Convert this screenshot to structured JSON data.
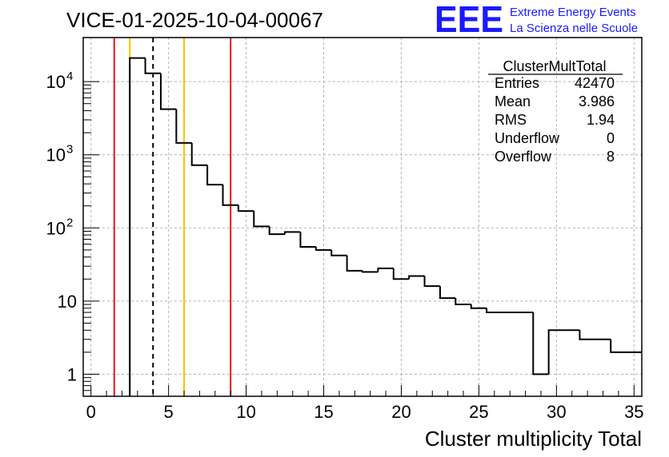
{
  "chart_data": {
    "type": "histogram",
    "title": "VICE-01-2025-10-04-00067",
    "xlabel": "Cluster multiplicity Total",
    "ylabel": "",
    "xlim": [
      -0.5,
      35.5
    ],
    "ylim": [
      0.5,
      40000
    ],
    "yscale": "log",
    "grid": true,
    "bin_edges": [
      2.5,
      3.5,
      4.5,
      5.5,
      6.5,
      7.5,
      8.5,
      9.5,
      10.5,
      11.5,
      12.5,
      13.5,
      14.5,
      15.5,
      16.5,
      17.5,
      18.5,
      19.5,
      20.5,
      21.5,
      22.5,
      23.5,
      24.5,
      25.5,
      26.5,
      27.5,
      28.5,
      29.5,
      30.5,
      31.5,
      32.5,
      33.5,
      34.5,
      35.5
    ],
    "counts": [
      21000,
      13000,
      4200,
      1450,
      720,
      390,
      205,
      170,
      105,
      82,
      88,
      55,
      50,
      42,
      26,
      25,
      28,
      20,
      22,
      16,
      11,
      9,
      8,
      7,
      7,
      7,
      1,
      4,
      4,
      3,
      3,
      2,
      2
    ],
    "x_ticks": [
      "0",
      "5",
      "10",
      "15",
      "20",
      "25",
      "30",
      "35"
    ],
    "y_ticks": [
      "1",
      "10",
      "10",
      "10",
      "10"
    ],
    "y_tick_exponents": [
      "",
      "",
      "2",
      "3",
      "4"
    ],
    "vertical_lines": [
      {
        "x": 1.5,
        "color": "#e8161b",
        "style": "solid"
      },
      {
        "x": 2.5,
        "color": "#ffc000",
        "style": "solid"
      },
      {
        "x": 4.0,
        "color": "#000000",
        "style": "dashed"
      },
      {
        "x": 6.0,
        "color": "#ffc000",
        "style": "solid"
      },
      {
        "x": 9.0,
        "color": "#e8161b",
        "style": "solid"
      }
    ],
    "stats_box": {
      "name": "ClusterMultTotal",
      "rows": [
        {
          "label": "Entries",
          "value": "42470"
        },
        {
          "label": "Mean",
          "value": "3.986"
        },
        {
          "label": "RMS",
          "value": "1.94"
        },
        {
          "label": "Underflow",
          "value": "0"
        },
        {
          "label": "Overflow",
          "value": "8"
        }
      ]
    }
  },
  "logo": {
    "mark": "EEE",
    "line1": "Extreme Energy Events",
    "line2": "La Scienza nelle Scuole",
    "color": "#1a1aff"
  }
}
